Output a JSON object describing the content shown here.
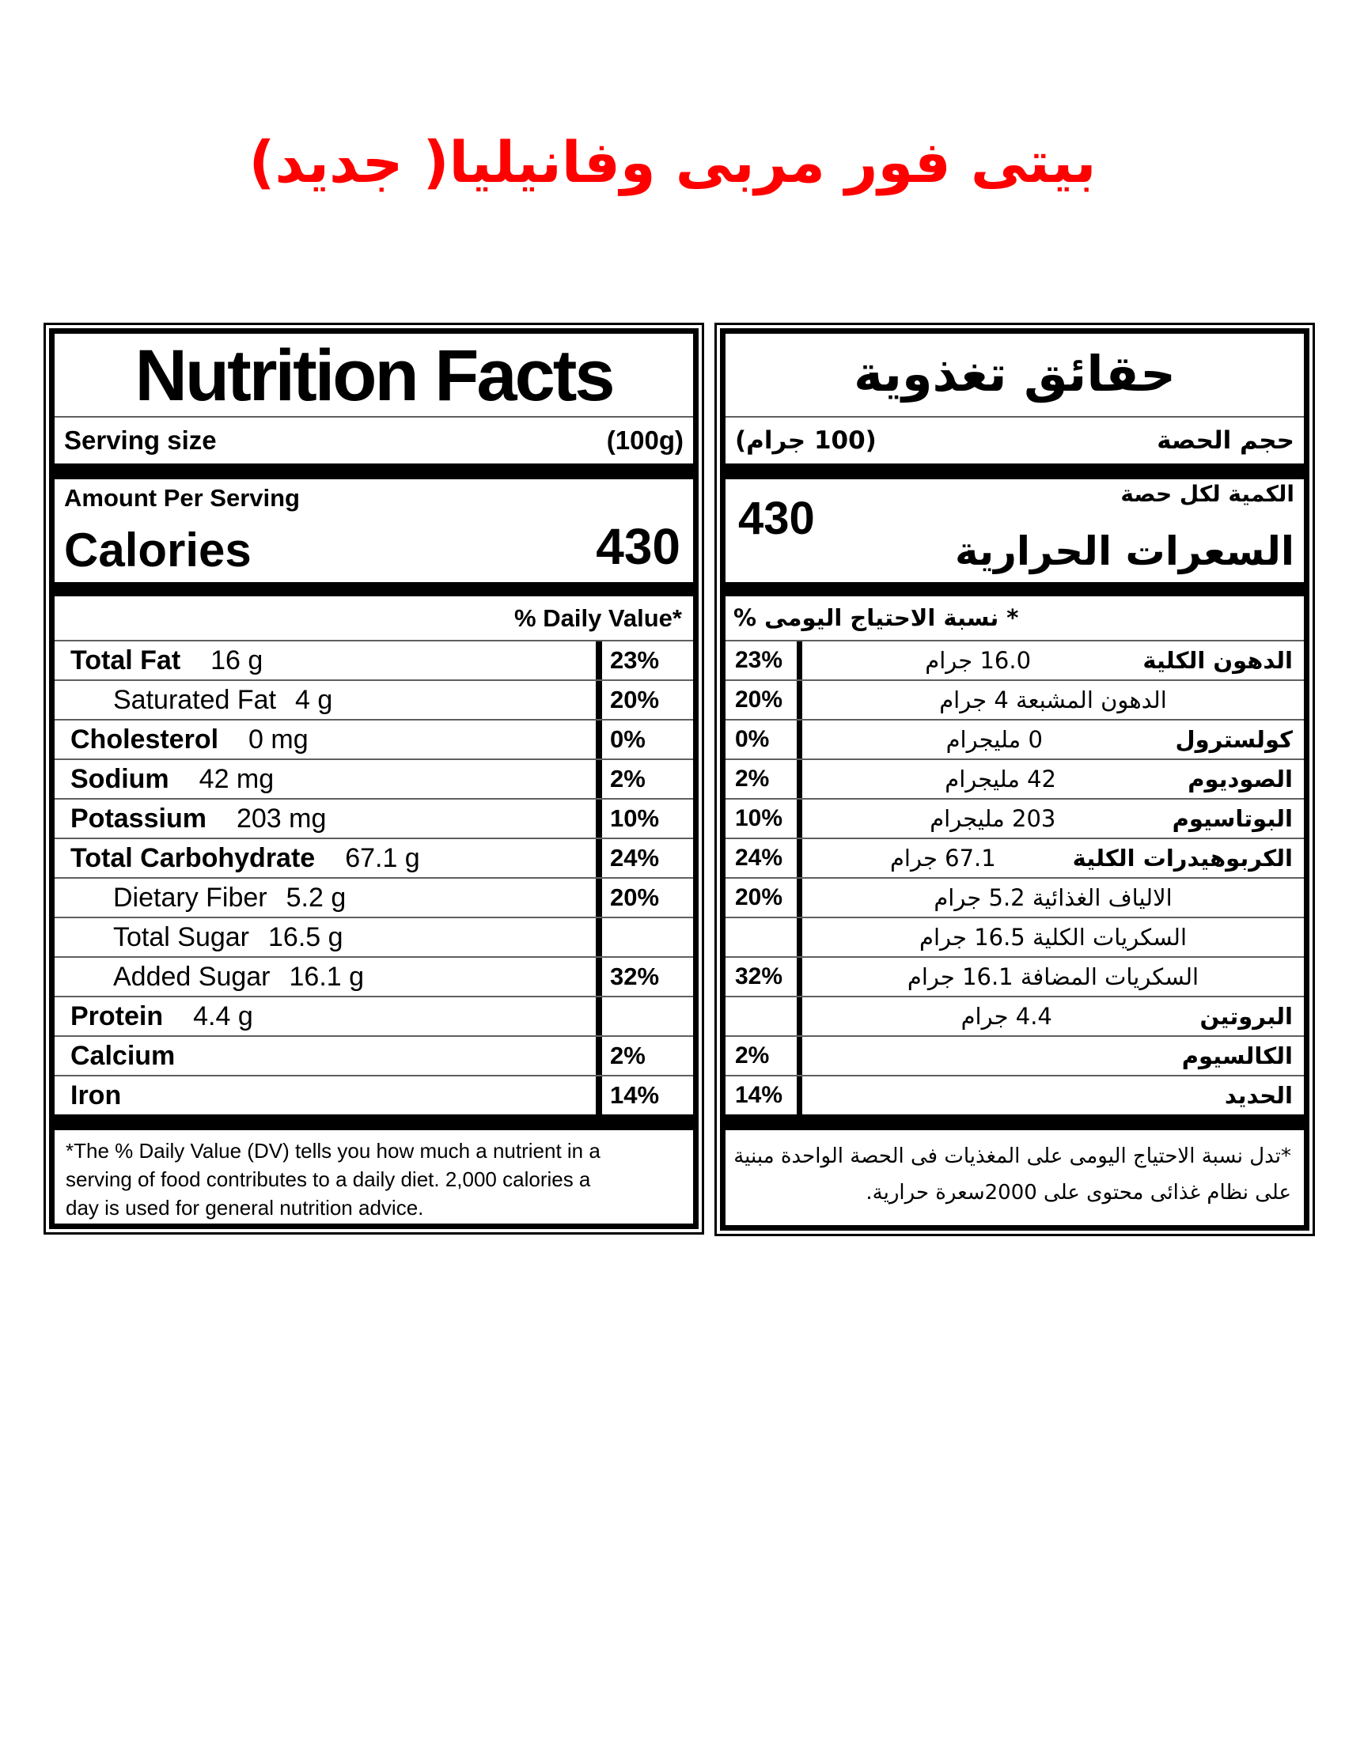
{
  "title": "بيتى فور مربى وفانيليا( جديد)",
  "colors": {
    "title_red": "#ff0000",
    "bar_black": "#000000",
    "sep_gray": "#5f5f5f"
  },
  "english": {
    "title": "Nutrition Facts",
    "serving_label": "Serving size",
    "serving_value": "(100g)",
    "amount_label": "Amount Per Serving",
    "calories_label": "Calories",
    "calories_value": "430",
    "daily_value_header": "% Daily Value*",
    "rows": [
      {
        "name": "Total Fat",
        "amount": "16 g",
        "dv": "23%",
        "bold": true,
        "indent": false
      },
      {
        "name": "Saturated Fat",
        "amount": "4 g",
        "dv": "20%",
        "bold": false,
        "indent": true
      },
      {
        "name": "Cholesterol",
        "amount": "0 mg",
        "dv": "0%",
        "bold": true,
        "indent": false
      },
      {
        "name": "Sodium",
        "amount": "42 mg",
        "dv": "2%",
        "bold": true,
        "indent": false
      },
      {
        "name": "Potassium",
        "amount": "203 mg",
        "dv": "10%",
        "bold": true,
        "indent": false
      },
      {
        "name": "Total Carbohydrate",
        "amount": "67.1 g",
        "dv": "24%",
        "bold": true,
        "indent": false
      },
      {
        "name": "Dietary Fiber",
        "amount": "5.2 g",
        "dv": "20%",
        "bold": false,
        "indent": true
      },
      {
        "name": "Total Sugar",
        "amount": "16.5 g",
        "dv": "",
        "bold": false,
        "indent": true
      },
      {
        "name": "Added Sugar",
        "amount": "16.1 g",
        "dv": "32%",
        "bold": false,
        "indent": true
      },
      {
        "name": "Protein",
        "amount": "4.4 g",
        "dv": "",
        "bold": true,
        "indent": false
      },
      {
        "name": "Calcium",
        "amount": "",
        "dv": "2%",
        "bold": true,
        "indent": false
      },
      {
        "name": "Iron",
        "amount": "",
        "dv": "14%",
        "bold": true,
        "indent": false
      }
    ],
    "footnote_lines": [
      "*The % Daily Value (DV) tells you how much a nutrient in a",
      "serving of food contributes to a daily diet. 2,000 calories a",
      "day is used for general nutrition advice."
    ]
  },
  "arabic": {
    "title": "حقائق تغذوية",
    "serving_label": "حجم الحصة",
    "serving_value": "(100 جرام)",
    "amount_label": "الكمية لكل حصة",
    "calories_label": "السعرات الحرارية",
    "calories_value": "430",
    "daily_value_header": "* نسبة الاحتياج اليومى %",
    "rows": [
      {
        "name": "الدهون الكلية",
        "amount": "16.0 جرام",
        "dv": "23%"
      },
      {
        "name": "",
        "amount": "الدهون المشبعة 4 جرام",
        "dv": "20%"
      },
      {
        "name": "كولسترول",
        "amount": "0 مليجرام",
        "dv": "0%"
      },
      {
        "name": "الصوديوم",
        "amount": "42  مليجرام",
        "dv": "2%"
      },
      {
        "name": "البوتاسيوم",
        "amount": "203  مليجرام",
        "dv": "10%"
      },
      {
        "name": "الكربوهيدرات الكلية",
        "amount": "67.1 جرام",
        "dv": "24%"
      },
      {
        "name": "",
        "amount": "الالياف الغذائية 5.2  جرام",
        "dv": "20%"
      },
      {
        "name": "",
        "amount": "السكريات الكلية  16.5 جرام",
        "dv": ""
      },
      {
        "name": "",
        "amount": "السكريات المضافة 16.1 جرام",
        "dv": "32%"
      },
      {
        "name": "البروتين",
        "amount": "4.4 جرام",
        "dv": ""
      },
      {
        "name": "الكالسيوم",
        "amount": "",
        "dv": "2%"
      },
      {
        "name": "الحديد",
        "amount": "",
        "dv": "14%"
      }
    ],
    "footnote_lines": [
      "*تدل نسبة الاحتياج اليومى على المغذيات فى الحصة الواحدة مبنية",
      "على نظام غذائى محتوى على 2000سعرة حرارية."
    ]
  }
}
